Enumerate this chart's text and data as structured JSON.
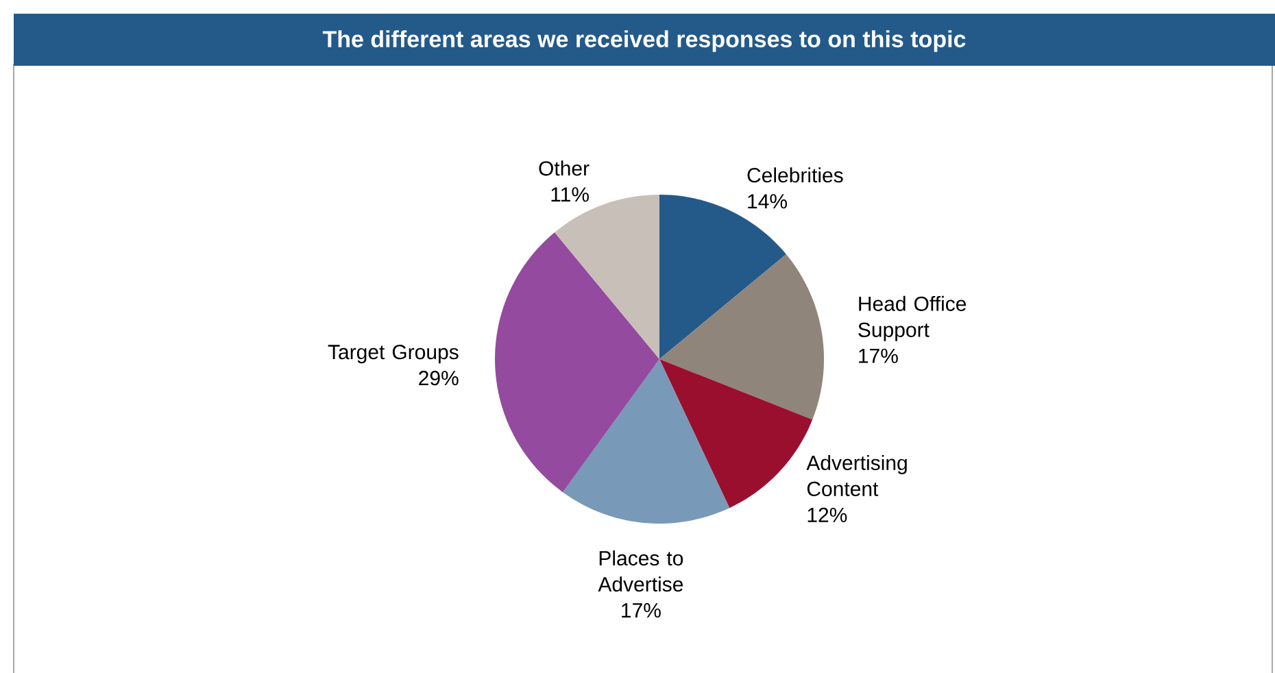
{
  "chart_data": {
    "type": "pie",
    "title": "The different areas we received responses to on this topic",
    "categories": [
      "Celebrities",
      "Head Office Support",
      "Advertising Content",
      "Places to Advertise",
      "Target Groups",
      "Other"
    ],
    "values": [
      14,
      17,
      12,
      17,
      29,
      11
    ],
    "value_labels": [
      "14%",
      "17%",
      "12%",
      "17%",
      "29%",
      "11%"
    ],
    "colors": [
      "#245a8a",
      "#8f857b",
      "#9b0f2e",
      "#7899b8",
      "#944a9e",
      "#c9bfb9"
    ]
  }
}
